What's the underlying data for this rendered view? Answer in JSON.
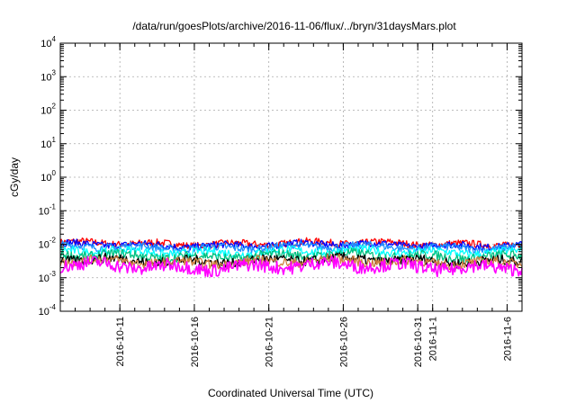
{
  "chart_data": {
    "type": "line",
    "title": "/data/run/goesPlots/archive/2016-11-06/flux/../bryn/31daysMars.plot",
    "xlabel": "Coordinated Universal Time (UTC)",
    "ylabel": "cGy/day",
    "x_range": [
      "2016-10-07",
      "2016-11-07"
    ],
    "ylim": [
      0.0001,
      10000
    ],
    "yscale": "log",
    "grid": true,
    "x_ticks": [
      "2016-10-11",
      "2016-10-16",
      "2016-10-21",
      "2016-10-26",
      "2016-10-31",
      "2016-11-1",
      "2016-11-6"
    ],
    "y_ticks": [
      {
        "value": 10000,
        "base": "10",
        "exp": "4"
      },
      {
        "value": 1000,
        "base": "10",
        "exp": "3"
      },
      {
        "value": 100,
        "base": "10",
        "exp": "2"
      },
      {
        "value": 10,
        "base": "10",
        "exp": "1"
      },
      {
        "value": 1,
        "base": "10",
        "exp": "0"
      },
      {
        "value": 0.1,
        "base": "10",
        "exp": "-1"
      },
      {
        "value": 0.01,
        "base": "10",
        "exp": "-2"
      },
      {
        "value": 0.001,
        "base": "10",
        "exp": "-3"
      },
      {
        "value": 0.0001,
        "base": "10",
        "exp": "-4"
      }
    ],
    "series": [
      {
        "color": "#ff0000",
        "level": 0.0105,
        "amp": 0.12
      },
      {
        "color": "#0000ff",
        "level": 0.0095,
        "amp": 0.12
      },
      {
        "color": "#1e90ff",
        "level": 0.0082,
        "amp": 0.13
      },
      {
        "color": "#00ffff",
        "level": 0.006,
        "amp": 0.14
      },
      {
        "color": "#00c080",
        "level": 0.0045,
        "amp": 0.16
      },
      {
        "color": "#000000",
        "level": 0.0033,
        "amp": 0.16
      },
      {
        "color": "#d08040",
        "level": 0.003,
        "amp": 0.16
      },
      {
        "color": "#ff00ff",
        "level": 0.0022,
        "amp": 0.22
      }
    ]
  }
}
